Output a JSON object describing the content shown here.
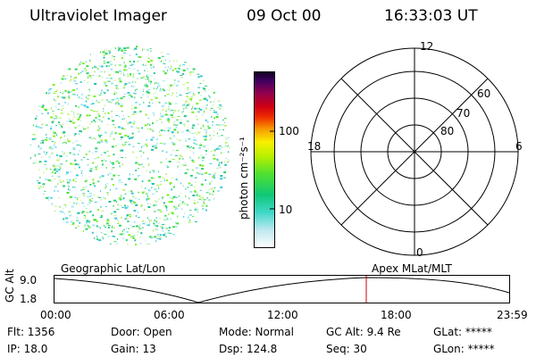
{
  "header": {
    "instrument": "Ultraviolet Imager",
    "date": "09 Oct 00",
    "time": "16:33:03 UT"
  },
  "colorbar": {
    "label": "photon cm⁻²s⁻¹",
    "ticks": [
      "100",
      "10"
    ],
    "scale": "log"
  },
  "polar_plot": {
    "mlt_labels": [
      "12",
      "18",
      "6",
      "0"
    ],
    "lat_labels": [
      "60",
      "70",
      "80"
    ]
  },
  "timeline": {
    "left_label": "Geographic Lat/Lon",
    "right_label": "Apex MLat/MLT",
    "y_axis_label": "GC Alt",
    "y_ticks": [
      "9.0",
      "1.8"
    ],
    "time_ticks": [
      "00:00",
      "06:00",
      "12:00",
      "18:00",
      "23:59"
    ],
    "marker_time": "16:33",
    "marker_color": "#cc0000"
  },
  "status": {
    "flt": "Flt: 1356",
    "ip": "IP: 18.0",
    "door": "Door: Open",
    "gain": "Gain: 13",
    "mode": "Mode: Normal",
    "dsp": "Dsp:  124.8",
    "gc_alt": "GC Alt: 9.4 Re",
    "seq": "Seq: 30",
    "glat": "GLat: *****",
    "glon": "GLon: *****"
  },
  "colors": {
    "background": "#ffffff",
    "foreground": "#000000"
  }
}
